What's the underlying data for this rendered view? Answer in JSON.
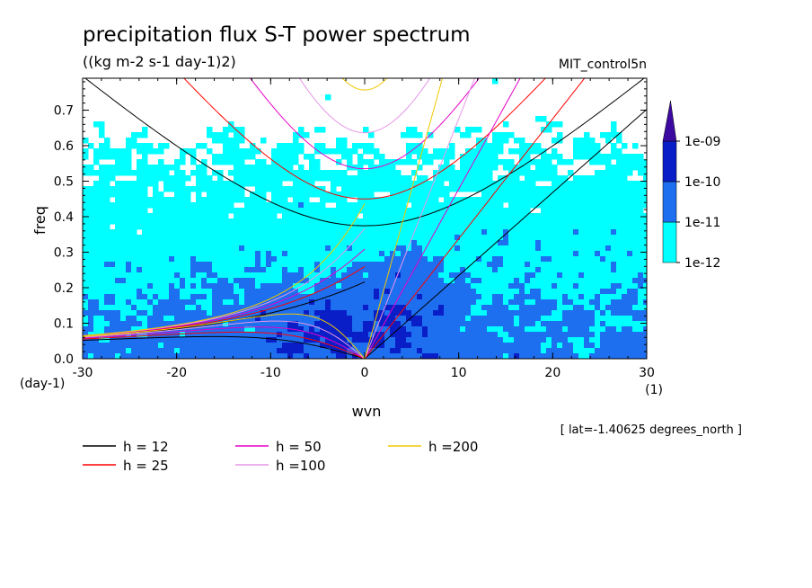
{
  "chart_data": {
    "type": "heatmap",
    "title": "precipitation flux S-T power spectrum",
    "units": "((kg m-2 s-1 day-1)2)",
    "dataset": "MIT_control5n",
    "xlabel": "wvn",
    "ylabel": "freq",
    "x_unit": "(1)",
    "y_unit": "(day-1)",
    "xlim": [
      -30,
      30
    ],
    "ylim": [
      0,
      0.79
    ],
    "x_ticks": [
      -30,
      -20,
      -10,
      0,
      10,
      20,
      30
    ],
    "y_ticks": [
      0.0,
      0.1,
      0.2,
      0.3,
      0.4,
      0.5,
      0.6,
      0.7
    ],
    "x_tick_labels": [
      "-30",
      "-20",
      "-10",
      "0",
      "10",
      "20",
      "30"
    ],
    "y_tick_labels": [
      "0.0",
      "0.1",
      "0.2",
      "0.3",
      "0.4",
      "0.5",
      "0.6",
      "0.7"
    ],
    "annotation": "[ lat=-1.40625 degrees_north ]",
    "colorbar": {
      "levels": [
        "1e-12",
        "1e-11",
        "1e-10",
        "1e-09"
      ],
      "colors": [
        "#ffffff",
        "#00ffff",
        "#1e6ef0",
        "#0a1ec8",
        "#3c0aa0"
      ]
    },
    "series": [
      {
        "name": "h = 12",
        "h": 12,
        "color": "#000000"
      },
      {
        "name": "h = 25",
        "h": 25,
        "color": "#ff0000"
      },
      {
        "name": "h = 50",
        "h": 50,
        "color": "#e600c8"
      },
      {
        "name": "h =100",
        "h": 100,
        "color": "#e696e6"
      },
      {
        "name": "h =200",
        "h": 200,
        "color": "#f0c800"
      }
    ],
    "grid": false,
    "legend": "bottom"
  }
}
